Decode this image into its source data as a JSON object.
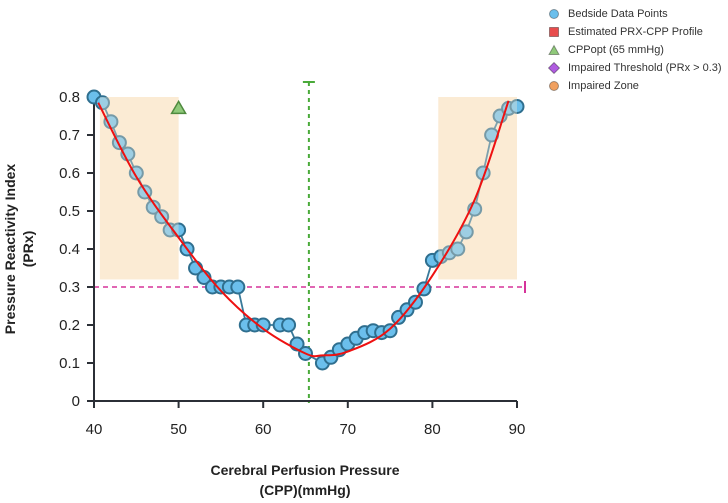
{
  "chart_data": {
    "type": "scatter",
    "xlabel_line1": "Cerebral Perfusion Pressure",
    "xlabel_line2": "(CPP)(mmHg)",
    "ylabel_line1": "Pressure Reactivity Index",
    "ylabel_line2": "(PRx)",
    "xlim": [
      40,
      90
    ],
    "ylim": [
      0,
      0.8
    ],
    "xticks": [
      "40",
      "50",
      "60",
      "70",
      "80",
      "90"
    ],
    "yticks": [
      "0",
      "0.1",
      "0.2",
      "0.3",
      "0.4",
      "0.5",
      "0.6",
      "0.7",
      "0.8"
    ],
    "grid": false,
    "legend_placement": "top-right",
    "legend": [
      {
        "label": "Bedside Data Points",
        "marker": "circle",
        "color": "#6bbfec"
      },
      {
        "label": "Estimated PRX-CPP Profile",
        "marker": "square",
        "color": "#e84c4c"
      },
      {
        "label": "CPPopt (65 mmHg)",
        "marker": "triangle",
        "color": "#8fc97a"
      },
      {
        "label": "Impaired Threshold (PRx > 0.3)",
        "marker": "diamond",
        "color": "#b05ce0"
      },
      {
        "label": "Impaired Zone",
        "marker": "circle",
        "color": "#f0a060"
      }
    ],
    "points": {
      "x": [
        40,
        41,
        42,
        43,
        44,
        45,
        46,
        47,
        48,
        49,
        50,
        51,
        52,
        53,
        54,
        55,
        56,
        57,
        58,
        59,
        60,
        62,
        63,
        64,
        65,
        67,
        68,
        69,
        70,
        71,
        72,
        73,
        74,
        75,
        76,
        77,
        78,
        79,
        80,
        81,
        82,
        83,
        84,
        85,
        86,
        87,
        88,
        89,
        90
      ],
      "y": [
        0.8,
        0.785,
        0.735,
        0.68,
        0.65,
        0.6,
        0.55,
        0.51,
        0.485,
        0.45,
        0.45,
        0.4,
        0.35,
        0.325,
        0.3,
        0.3,
        0.3,
        0.3,
        0.2,
        0.2,
        0.2,
        0.2,
        0.2,
        0.15,
        0.125,
        0.1,
        0.115,
        0.135,
        0.15,
        0.165,
        0.18,
        0.185,
        0.18,
        0.185,
        0.22,
        0.24,
        0.26,
        0.295,
        0.37,
        0.38,
        0.39,
        0.4,
        0.445,
        0.505,
        0.6,
        0.7,
        0.75,
        0.77,
        0.775
      ]
    },
    "profile_curve": {
      "x": [
        40.5,
        45,
        50,
        55,
        60,
        65,
        67,
        70,
        75,
        80,
        85,
        89
      ],
      "y": [
        0.785,
        0.59,
        0.43,
        0.29,
        0.19,
        0.125,
        0.12,
        0.13,
        0.19,
        0.33,
        0.53,
        0.79
      ]
    },
    "cppopt": 65.4,
    "cppopt_marker": {
      "x": 50,
      "y": 0.77
    },
    "threshold": 0.3,
    "impaired_zones": [
      {
        "x": [
          40.7,
          50
        ],
        "y": [
          0.32,
          0.8
        ]
      },
      {
        "x": [
          80.7,
          90
        ],
        "y": [
          0.32,
          0.8
        ]
      }
    ],
    "colors": {
      "points": "#6bbfec",
      "point_stroke": "#2f6f8f",
      "curve": "#ee1111",
      "cppopt_line": "#4aaa3a",
      "threshold_line": "#d6339a",
      "zone": "#fbecd4",
      "axis": "#2b2f36"
    }
  }
}
